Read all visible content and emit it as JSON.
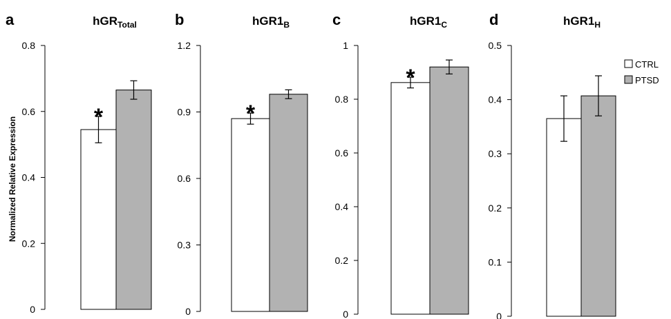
{
  "chart_data": [
    {
      "type": "bar",
      "panel": "a",
      "title": "hGR",
      "title_subscript": "Total",
      "ylabel": "Normalized Relative Expression",
      "ylim": [
        0,
        0.8
      ],
      "yticks": [
        "0",
        "0.2",
        "0.4",
        "0.6",
        "0.8"
      ],
      "series": [
        {
          "name": "CTRL",
          "value": 0.545,
          "error": 0.04,
          "color": "#ffffff",
          "significance": "*"
        },
        {
          "name": "PTSD",
          "value": 0.665,
          "error": 0.028,
          "color": "#b2b2b2",
          "significance": ""
        }
      ]
    },
    {
      "type": "bar",
      "panel": "b",
      "title": "hGR1",
      "title_subscript": "B",
      "ylim": [
        0,
        1.2
      ],
      "yticks": [
        "0",
        "0.3",
        "0.6",
        "0.9",
        "1.2"
      ],
      "series": [
        {
          "name": "CTRL",
          "value": 0.87,
          "error": 0.025,
          "color": "#ffffff",
          "significance": "*"
        },
        {
          "name": "PTSD",
          "value": 0.98,
          "error": 0.02,
          "color": "#b2b2b2",
          "significance": ""
        }
      ]
    },
    {
      "type": "bar",
      "panel": "c",
      "title": "hGR1",
      "title_subscript": "C",
      "ylim": [
        0,
        1
      ],
      "yticks": [
        "0",
        "0.2",
        "0.4",
        "0.6",
        "0.8",
        "1"
      ],
      "series": [
        {
          "name": "CTRL",
          "value": 0.862,
          "error": 0.02,
          "color": "#ffffff",
          "significance": "*"
        },
        {
          "name": "PTSD",
          "value": 0.92,
          "error": 0.026,
          "color": "#b2b2b2",
          "significance": ""
        }
      ]
    },
    {
      "type": "bar",
      "panel": "d",
      "title": "hGR1",
      "title_subscript": "H",
      "ylim": [
        0,
        0.5
      ],
      "yticks": [
        "0",
        "0.1",
        "0.2",
        "0.3",
        "0.4",
        "0.5"
      ],
      "series": [
        {
          "name": "CTRL",
          "value": 0.365,
          "error": 0.042,
          "color": "#ffffff",
          "significance": ""
        },
        {
          "name": "PTSD",
          "value": 0.407,
          "error": 0.037,
          "color": "#b2b2b2",
          "significance": ""
        }
      ]
    }
  ],
  "legend": {
    "placement": "right",
    "items": [
      {
        "label": "CTRL",
        "color": "#ffffff"
      },
      {
        "label": "PTSD",
        "color": "#b2b2b2"
      }
    ]
  }
}
